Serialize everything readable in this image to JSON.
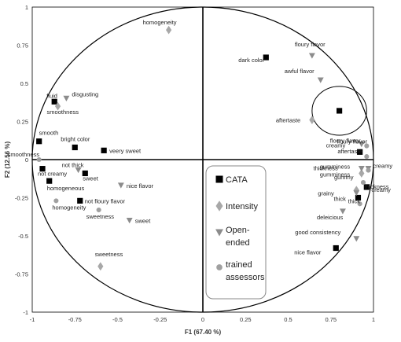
{
  "chart_data": {
    "type": "scatter",
    "xlabel": "F1 (67.40 %)",
    "ylabel": "F2 (12.56 %)",
    "xlim": [
      -1,
      1
    ],
    "ylim": [
      -1,
      1
    ],
    "x_ticks": [
      "-1",
      "-0.75",
      "-0.5",
      "-0.25",
      "0",
      "0.25",
      "0.5",
      "0.75",
      "1"
    ],
    "y_ticks": [
      "-1",
      "-0.75",
      "-0.5",
      "-0.25",
      "0",
      "0.25",
      "0.5",
      "0.75",
      "1"
    ],
    "unit_circle": true,
    "legend": [
      {
        "name": "CATA",
        "marker": "square"
      },
      {
        "name": "Intensity",
        "marker": "diamond"
      },
      {
        "name": "Open-\nended",
        "marker": "triangle"
      },
      {
        "name": "trained\nassessors",
        "marker": "circle"
      }
    ],
    "colors": {
      "CATA": "#000000",
      "Intensity": "#a8a8a8",
      "Open-ended": "#8c8c8c",
      "trained assessors": "#a0a0a0",
      "axis": "#000000"
    },
    "series": [
      {
        "name": "CATA",
        "marker": "square",
        "points": [
          {
            "x": 0.37,
            "y": 0.67,
            "label": "dark color"
          },
          {
            "x": 0.8,
            "y": 0.32,
            "label": ""
          },
          {
            "x": -0.87,
            "y": 0.38,
            "label": "fluid"
          },
          {
            "x": -0.96,
            "y": 0.12,
            "label": "smooth"
          },
          {
            "x": -0.75,
            "y": 0.08,
            "label": "bright color"
          },
          {
            "x": -0.58,
            "y": 0.06,
            "label": "veery sweet"
          },
          {
            "x": -0.94,
            "y": -0.06,
            "label": "not creamy"
          },
          {
            "x": -0.69,
            "y": -0.09,
            "label": "sweet"
          },
          {
            "x": -0.9,
            "y": -0.14,
            "label": "homogeneous"
          },
          {
            "x": -0.72,
            "y": -0.27,
            "label": "not floury flavor"
          },
          {
            "x": 0.92,
            "y": 0.05,
            "label": "creamy"
          },
          {
            "x": 0.96,
            "y": -0.18,
            "label": "creamy"
          },
          {
            "x": 0.91,
            "y": -0.25,
            "label": "thick"
          },
          {
            "x": 0.78,
            "y": -0.58,
            "label": "nice flavor"
          }
        ]
      },
      {
        "name": "Intensity",
        "marker": "diamond",
        "points": [
          {
            "x": -0.2,
            "y": 0.85,
            "label": "homogeneity"
          },
          {
            "x": -0.85,
            "y": 0.35,
            "label": "smoothness"
          },
          {
            "x": 0.64,
            "y": 0.26,
            "label": "aftertaste"
          },
          {
            "x": 0.93,
            "y": -0.09,
            "label": "gumminess"
          },
          {
            "x": 0.9,
            "y": -0.2,
            "label": "thickness"
          },
          {
            "x": -0.6,
            "y": -0.7,
            "label": "sweetness"
          }
        ]
      },
      {
        "name": "Open-ended",
        "marker": "triangle",
        "points": [
          {
            "x": 0.64,
            "y": 0.68,
            "label": "floury flavor"
          },
          {
            "x": 0.69,
            "y": 0.52,
            "label": "awful flavor"
          },
          {
            "x": -0.8,
            "y": 0.4,
            "label": "disgusting"
          },
          {
            "x": -0.73,
            "y": -0.07,
            "label": "not thick"
          },
          {
            "x": -0.48,
            "y": -0.17,
            "label": "nice flavor"
          },
          {
            "x": -0.43,
            "y": -0.4,
            "label": "sweet"
          },
          {
            "x": 0.93,
            "y": 0.1,
            "label": "floury flavor"
          },
          {
            "x": 0.93,
            "y": -0.06,
            "label": "gumminess"
          },
          {
            "x": 0.97,
            "y": -0.06,
            "label": "thickness"
          },
          {
            "x": 0.9,
            "y": -0.22,
            "label": "grainy"
          },
          {
            "x": 0.82,
            "y": -0.34,
            "label": "deleicious"
          },
          {
            "x": 0.9,
            "y": -0.52,
            "label": "good consistency"
          }
        ]
      },
      {
        "name": "trained assessors",
        "marker": "circle",
        "points": [
          {
            "x": -0.96,
            "y": 0.0,
            "label": "smoothness"
          },
          {
            "x": -0.86,
            "y": -0.27,
            "label": "homogeneity"
          },
          {
            "x": -0.61,
            "y": -0.33,
            "label": "sweetness"
          },
          {
            "x": 0.96,
            "y": 0.09,
            "label": "floury flavor"
          },
          {
            "x": 0.96,
            "y": 0.02,
            "label": "aftertaste"
          },
          {
            "x": 0.97,
            "y": -0.07,
            "label": "creamy"
          },
          {
            "x": 0.94,
            "y": -0.15,
            "label": "gummy"
          },
          {
            "x": 0.92,
            "y": -0.29,
            "label": "thick"
          }
        ]
      }
    ],
    "annotations": [
      {
        "shape": "ellipse",
        "cx": 0.8,
        "cy": 0.32,
        "rx": 0.16,
        "ry": 0.16
      }
    ]
  }
}
